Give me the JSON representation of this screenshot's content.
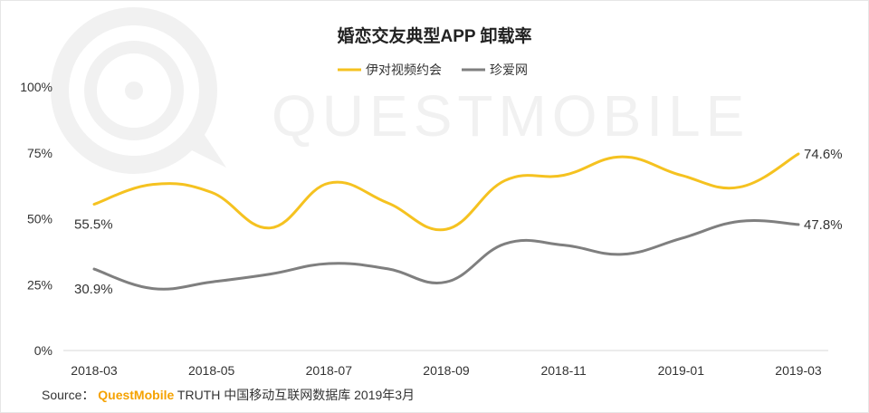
{
  "chart_data": {
    "type": "line",
    "title": "婚恋交友典型APP 卸载率",
    "legend_position": "top-center",
    "x_ticks": [
      "2018-03",
      "2018-05",
      "2018-07",
      "2018-09",
      "2018-11",
      "2019-01",
      "2019-03"
    ],
    "x": [
      "2018-03",
      "2018-04",
      "2018-05",
      "2018-06",
      "2018-07",
      "2018-08",
      "2018-09",
      "2018-10",
      "2018-11",
      "2018-12",
      "2019-01",
      "2019-02",
      "2019-03"
    ],
    "y_ticks": [
      "100%",
      "75%",
      "50%",
      "25%",
      "0%"
    ],
    "ylim": [
      0,
      100
    ],
    "grid": false,
    "series": [
      {
        "name": "伊对视频约会",
        "color": "#f5c220",
        "values": [
          55.5,
          63,
          60,
          46.5,
          63.5,
          56,
          46,
          64.5,
          66.5,
          73.5,
          66.5,
          62,
          74.6
        ],
        "labels": [
          {
            "index": 0,
            "text": "55.5%"
          },
          {
            "index": 12,
            "text": "74.6%"
          }
        ]
      },
      {
        "name": "珍爱网",
        "color": "#7f7f7f",
        "values": [
          30.9,
          23.5,
          26,
          29,
          33,
          31,
          26,
          40.5,
          40,
          36.5,
          42.5,
          49,
          47.8
        ],
        "labels": [
          {
            "index": 0,
            "text": "30.9%"
          },
          {
            "index": 12,
            "text": "47.8%"
          }
        ]
      }
    ]
  },
  "watermark": "QUESTMOBILE",
  "source": {
    "prefix": "Source：",
    "brand": "QuestMobile",
    "text": "TRUTH 中国移动互联网数据库 2019年3月"
  }
}
